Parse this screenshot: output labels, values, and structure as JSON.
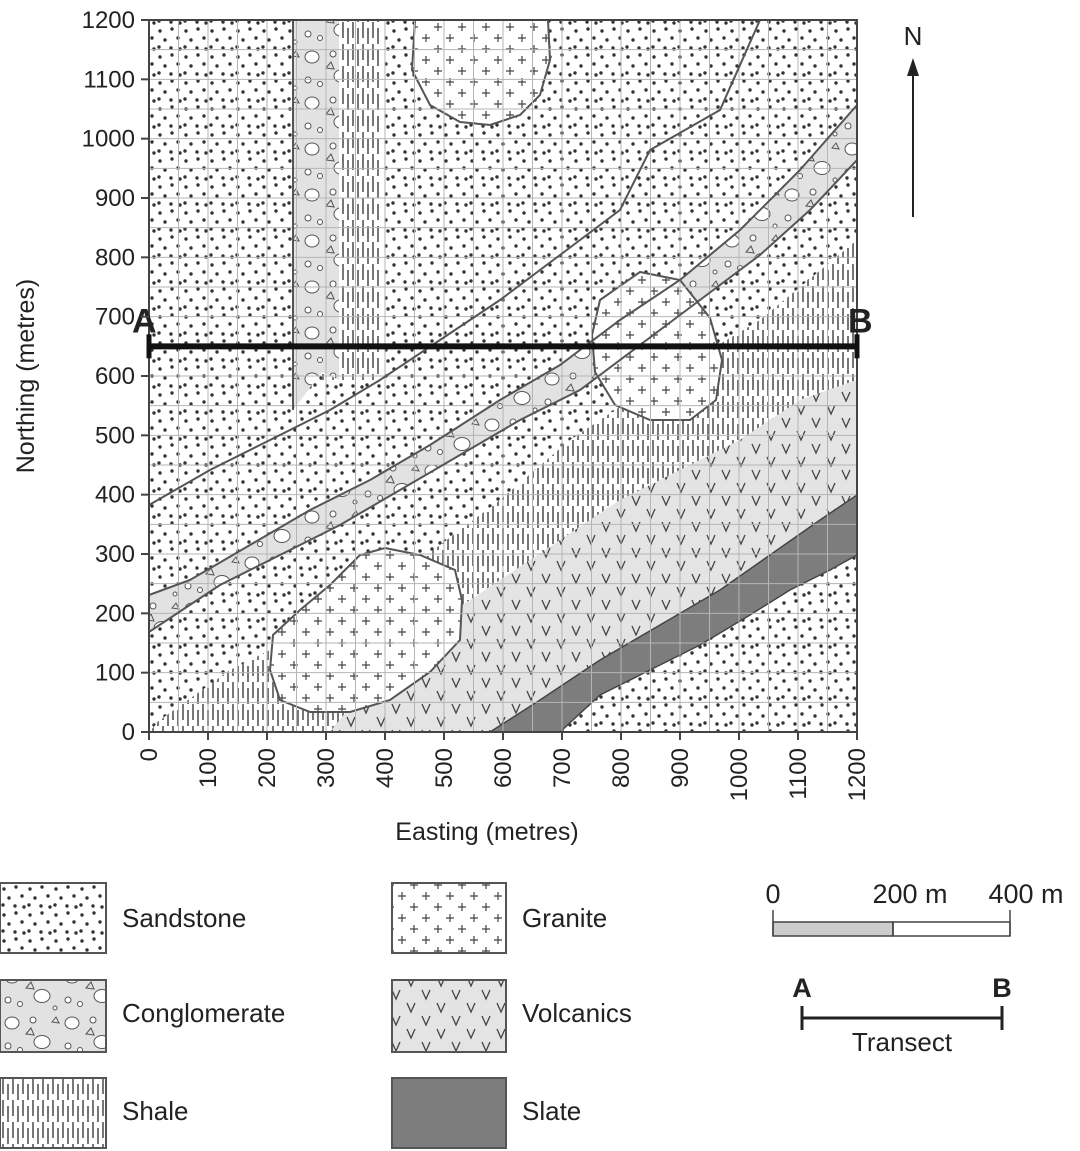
{
  "map": {
    "north_label": "N",
    "x_axis": {
      "title": "Easting (metres)",
      "ticks": [
        "0",
        "100",
        "200",
        "300",
        "400",
        "500",
        "600",
        "700",
        "800",
        "900",
        "1000",
        "1100",
        "1200"
      ]
    },
    "y_axis": {
      "title": "Northing (metres)",
      "ticks": [
        "0",
        "100",
        "200",
        "300",
        "400",
        "500",
        "600",
        "700",
        "800",
        "900",
        "1000",
        "1100",
        "1200"
      ]
    },
    "transect": {
      "start_label": "A",
      "end_label": "B",
      "northing_m": 650
    }
  },
  "legend": {
    "items": [
      {
        "label": "Sandstone",
        "pattern": "sandstone"
      },
      {
        "label": "Granite",
        "pattern": "granite"
      },
      {
        "label": "Conglomerate",
        "pattern": "conglomerate"
      },
      {
        "label": "Volcanics",
        "pattern": "volcanics"
      },
      {
        "label": "Shale",
        "pattern": "shale"
      },
      {
        "label": "Slate",
        "pattern": "slate"
      }
    ]
  },
  "scale_bar": {
    "labels": [
      "0",
      "200 m",
      "400 m"
    ]
  },
  "transect_key": {
    "start": "A",
    "end": "B",
    "label": "Transect"
  },
  "colors": {
    "slate": "#7d7d7d",
    "light_fill": "#e6e6e6",
    "line": "#555555",
    "transect": "#111111"
  }
}
